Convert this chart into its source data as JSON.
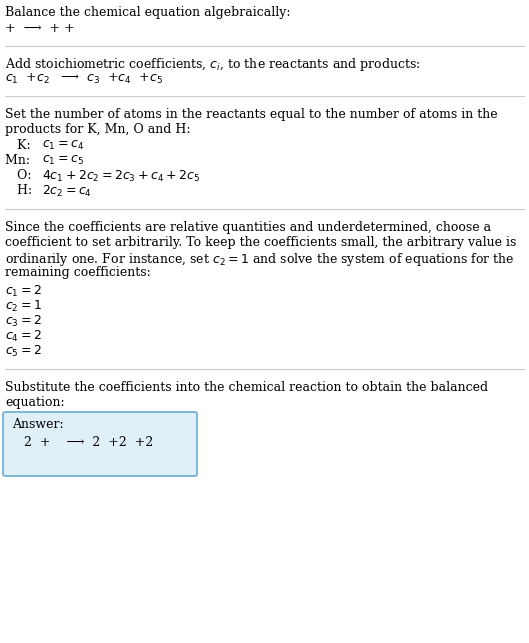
{
  "title": "Balance the chemical equation algebraically:",
  "line1": "+  ⟶  + +",
  "section2_title": "Add stoichiometric coefficients, $c_i$, to the reactants and products:",
  "section2_line": "$c_1$  +$c_2$   ⟶  $c_3$  +$c_4$  +$c_5$",
  "section3_title_1": "Set the number of atoms in the reactants equal to the number of atoms in the",
  "section3_title_2": "products for K, Mn, O and H:",
  "section3_lines": [
    [
      "   K: ",
      "$c_1 = c_4$"
    ],
    [
      "Mn: ",
      "$c_1 = c_5$"
    ],
    [
      "   O: ",
      "$4 c_1 + 2 c_2 = 2 c_3 + c_4 + 2 c_5$"
    ],
    [
      "   H: ",
      "$2 c_2 = c_4$"
    ]
  ],
  "section4_text": [
    "Since the coefficients are relative quantities and underdetermined, choose a",
    "coefficient to set arbitrarily. To keep the coefficients small, the arbitrary value is",
    "ordinarily one. For instance, set $c_2 = 1$ and solve the system of equations for the",
    "remaining coefficients:"
  ],
  "section4_lines": [
    "$c_1 = 2$",
    "$c_2 = 1$",
    "$c_3 = 2$",
    "$c_4 = 2$",
    "$c_5 = 2$"
  ],
  "section5_title_1": "Substitute the coefficients into the chemical reaction to obtain the balanced",
  "section5_title_2": "equation:",
  "answer_label": "Answer:",
  "answer_line": "   2  +    ⟶  2  +2  +2",
  "bg_color": "#ffffff",
  "text_color": "#000000",
  "box_bg": "#dff0f8",
  "box_border": "#6aadcf",
  "divider_color": "#cccccc",
  "font_size": 9.0,
  "serif_font": "DejaVu Serif",
  "sans_font": "DejaVu Sans"
}
